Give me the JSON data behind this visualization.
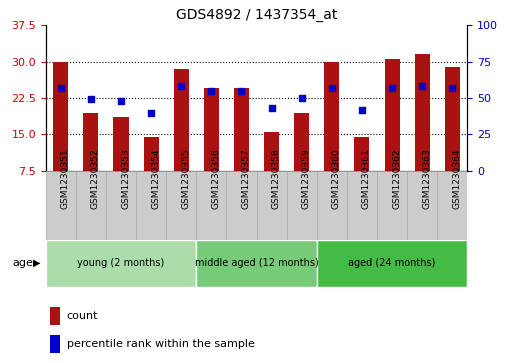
{
  "title": "GDS4892 / 1437354_at",
  "samples": [
    "GSM1230351",
    "GSM1230352",
    "GSM1230353",
    "GSM1230354",
    "GSM1230355",
    "GSM1230356",
    "GSM1230357",
    "GSM1230358",
    "GSM1230359",
    "GSM1230360",
    "GSM1230361",
    "GSM1230362",
    "GSM1230363",
    "GSM1230364"
  ],
  "counts": [
    30.0,
    19.5,
    18.5,
    14.5,
    28.5,
    24.5,
    24.5,
    15.5,
    19.5,
    30.0,
    14.5,
    30.5,
    31.5,
    29.0
  ],
  "percentiles": [
    57,
    49,
    48,
    40,
    58,
    55,
    55,
    43,
    50,
    57,
    42,
    57,
    58,
    57
  ],
  "groups": [
    {
      "label": "young (2 months)",
      "start": 0,
      "end": 5
    },
    {
      "label": "middle aged (12 months)",
      "start": 5,
      "end": 9
    },
    {
      "label": "aged (24 months)",
      "start": 9,
      "end": 14
    }
  ],
  "group_colors": [
    "#AADDAA",
    "#77CC77",
    "#44BB44"
  ],
  "ylim_left": [
    7.5,
    37.5
  ],
  "ylim_right": [
    0,
    100
  ],
  "yticks_left": [
    7.5,
    15.0,
    22.5,
    30.0,
    37.5
  ],
  "yticks_right": [
    0,
    25,
    50,
    75,
    100
  ],
  "bar_color": "#AA1111",
  "dot_color": "#0000CC",
  "bar_width": 0.5,
  "grid_lines": [
    15.0,
    22.5,
    30.0
  ],
  "sample_box_color": "#CCCCCC",
  "sample_box_edge": "#AAAAAA"
}
